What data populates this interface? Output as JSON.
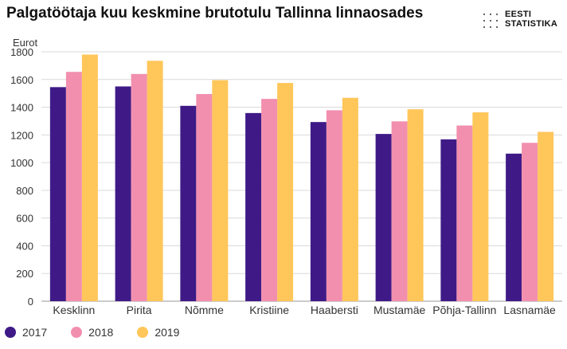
{
  "header": {
    "title": "Palgatöötaja kuu keskmine brutotulu Tallinna linnaosades",
    "logo_line1": "EESTI",
    "logo_line2": "STATISTIKA"
  },
  "chart_data": {
    "type": "bar",
    "title": "Palgatöötaja kuu keskmine brutotulu Tallinna linnaosades",
    "ylabel": "Eurot",
    "xlabel": "",
    "ylim": [
      0,
      1800
    ],
    "yticks": [
      0,
      200,
      400,
      600,
      800,
      1000,
      1200,
      1400,
      1600,
      1800
    ],
    "grid": true,
    "legend_position": "bottom-left",
    "categories": [
      "Kesklinn",
      "Pirita",
      "Nõmme",
      "Kristiine",
      "Haabersti",
      "Mustamäe",
      "Põhja-Tallinn",
      "Lasnamäe"
    ],
    "series": [
      {
        "name": "2017",
        "color": "#3f1a87",
        "values": [
          1545,
          1550,
          1410,
          1358,
          1293,
          1207,
          1168,
          1065
        ]
      },
      {
        "name": "2018",
        "color": "#f28fae",
        "values": [
          1655,
          1640,
          1495,
          1460,
          1378,
          1298,
          1268,
          1143
        ]
      },
      {
        "name": "2019",
        "color": "#ffc65a",
        "values": [
          1780,
          1735,
          1595,
          1575,
          1468,
          1385,
          1363,
          1222
        ]
      }
    ]
  }
}
